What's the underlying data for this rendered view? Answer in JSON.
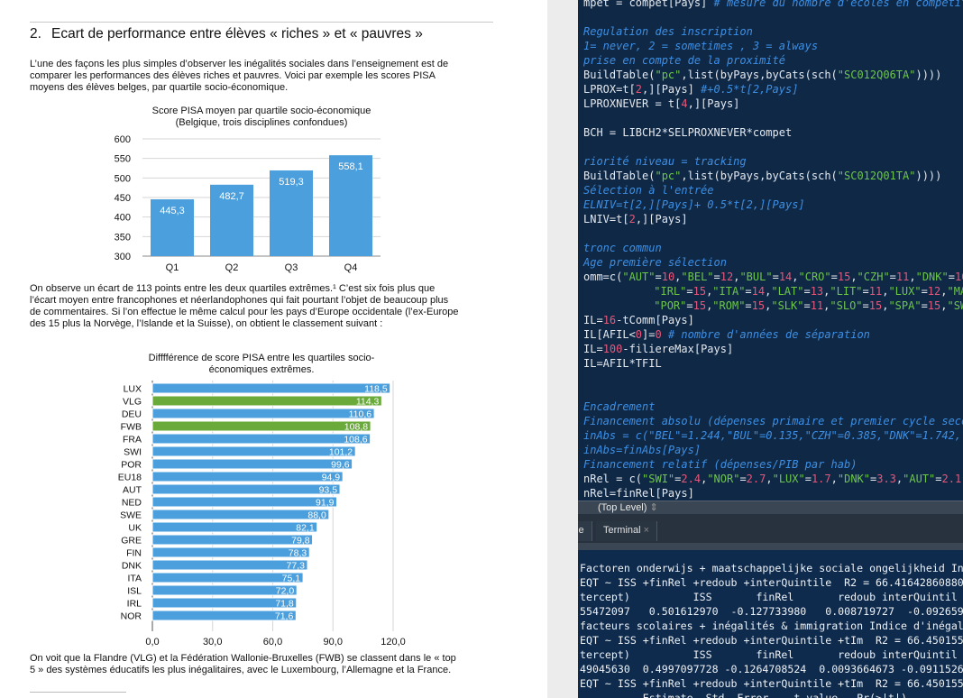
{
  "document": {
    "heading_number": "2.",
    "heading": "Ecart de performance entre élèves « riches » et « pauvres »",
    "para1": [
      "L’une des façons les plus simples d’observer les inégalités sociales dans l’enseignement est de",
      "comparer les performances des élèves riches et pauvres. Voici par exemple les scores PISA",
      "moyens des élèves belges, par quartile socio-économique."
    ],
    "para2": [
      "On observe un écart de 113 points entre les deux quartiles extrêmes.¹ C’est six fois plus que",
      "l’écart moyen entre francophones et néerlandophones qui fait pourtant l’objet de beaucoup plus",
      "de commentaires. Si l’on effectue le même calcul pour les pays d’Europe occidentale (l’ex-Europe",
      "des 15 plus la Norvège, l’Islande et la Suisse), on obtient le classement suivant :"
    ],
    "para3": [
      "On voit que la Flandre (VLG) et la Fédération Wallonie-Bruxelles (FWB) se classent dans le « top",
      "5 » des systèmes éducatifs les plus inégalitaires, avec le Luxembourg, l’Allemagne et la France."
    ]
  },
  "chart_data": [
    {
      "type": "bar",
      "title": "Score PISA moyen par quartile socio-économique",
      "subtitle": "(Belgique, trois disciplines confondues)",
      "categories": [
        "Q1",
        "Q2",
        "Q3",
        "Q4"
      ],
      "values": [
        445.3,
        482.7,
        519.3,
        558.1
      ],
      "value_labels": [
        "445,3",
        "482,7",
        "519,3",
        "558,1"
      ],
      "ylim": [
        300,
        600
      ],
      "yticks": [
        "300",
        "350",
        "400",
        "450",
        "500",
        "550",
        "600"
      ],
      "grid": true,
      "color": "#4a9fdc"
    },
    {
      "type": "bar",
      "orientation": "horizontal",
      "title": "Difffférence de score PISA entre les quartiles socio-",
      "subtitle": "économiques extrêmes.",
      "categories": [
        "LUX",
        "VLG",
        "DEU",
        "FWB",
        "FRA",
        "SWI",
        "POR",
        "EU18",
        "AUT",
        "NED",
        "SWE",
        "UK",
        "GRE",
        "FIN",
        "DNK",
        "ITA",
        "ISL",
        "IRL",
        "NOR"
      ],
      "values": [
        118.5,
        114.3,
        110.6,
        108.8,
        108.6,
        101.2,
        99.6,
        94.9,
        93.5,
        91.9,
        88.0,
        82.1,
        79.8,
        78.3,
        77.3,
        75.1,
        72.0,
        71.8,
        71.6
      ],
      "value_labels": [
        "118,5",
        "114,3",
        "110,6",
        "108,8",
        "108,6",
        "101,2",
        "99,6",
        "94,9",
        "93,5",
        "91,9",
        "88,0",
        "82,1",
        "79,8",
        "78,3",
        "77,3",
        "75,1",
        "72,0",
        "71,8",
        "71,6"
      ],
      "highlighted": [
        "VLG",
        "FWB"
      ],
      "xlim": [
        0,
        120
      ],
      "xticks": [
        "0,0",
        "30,0",
        "60,0",
        "90,0",
        "120,0"
      ],
      "grid": true,
      "color": "#4a9fdc",
      "highlight_color": "#6aaa3a"
    }
  ],
  "editor": {
    "lines": [
      [
        [
          "mpet = compet[Pays] ",
          ""
        ],
        [
          "# mesure du nombre d'écoles en compétitio",
          "c"
        ]
      ],
      [],
      [
        [
          "Regulation des inscription",
          "c"
        ]
      ],
      [
        [
          "1= never, 2 = sometimes , 3 = always",
          "c"
        ]
      ],
      [
        [
          "prise en compte de la proximité",
          "c"
        ]
      ],
      [
        [
          "BuildTable(",
          ""
        ],
        [
          "\"pc\"",
          "s"
        ],
        [
          ",list(byPays,byCats(sch(",
          ""
        ],
        [
          "\"SC012Q06TA\"",
          "s"
        ],
        [
          "))))",
          ""
        ]
      ],
      [
        [
          "LPROX=t[",
          ""
        ],
        [
          "2",
          "n"
        ],
        [
          ",][Pays] ",
          ""
        ],
        [
          "#+0.5*t[2,Pays]",
          "c"
        ]
      ],
      [
        [
          "LPROXNEVER = t[",
          ""
        ],
        [
          "4",
          "n"
        ],
        [
          ",][Pays]",
          ""
        ]
      ],
      [],
      [
        [
          "BCH = LIBCH2*SELPROXNEVER*compet",
          ""
        ]
      ],
      [],
      [
        [
          "riorité niveau = tracking",
          "c"
        ]
      ],
      [
        [
          "BuildTable(",
          ""
        ],
        [
          "\"pc\"",
          "s"
        ],
        [
          ",list(byPays,byCats(sch(",
          ""
        ],
        [
          "\"SC012Q01TA\"",
          "s"
        ],
        [
          "))))",
          ""
        ]
      ],
      [
        [
          "Sélection à l'entrée",
          "c"
        ]
      ],
      [
        [
          "ELNIV=t[2,][Pays]+ 0.5*t[2,][Pays]",
          "c"
        ]
      ],
      [
        [
          "LNIV=t[",
          ""
        ],
        [
          "2",
          "n"
        ],
        [
          ",][Pays]",
          ""
        ]
      ],
      [],
      [
        [
          "tronc commun",
          "c"
        ]
      ],
      [
        [
          "Age première sélection",
          "c"
        ]
      ],
      [
        [
          "omm=c(",
          ""
        ],
        [
          "\"AUT\"",
          "s"
        ],
        [
          "=",
          ""
        ],
        [
          "10",
          "n"
        ],
        [
          ",",
          ""
        ],
        [
          "\"BEL\"",
          "s"
        ],
        [
          "=",
          ""
        ],
        [
          "12",
          "n"
        ],
        [
          ",",
          ""
        ],
        [
          "\"BUL\"",
          "s"
        ],
        [
          "=",
          ""
        ],
        [
          "14",
          "n"
        ],
        [
          ",",
          ""
        ],
        [
          "\"CRO\"",
          "s"
        ],
        [
          "=",
          ""
        ],
        [
          "15",
          "n"
        ],
        [
          ",",
          ""
        ],
        [
          "\"CZH\"",
          "s"
        ],
        [
          "=",
          ""
        ],
        [
          "11",
          "n"
        ],
        [
          ",",
          ""
        ],
        [
          "\"DNK\"",
          "s"
        ],
        [
          "=",
          ""
        ],
        [
          "16",
          "n"
        ],
        [
          ",\"",
          ""
        ]
      ],
      [
        [
          "          ",
          ""
        ],
        [
          "\"IRL\"",
          "s"
        ],
        [
          "=",
          ""
        ],
        [
          "15",
          "n"
        ],
        [
          ",",
          ""
        ],
        [
          "\"ITA\"",
          "s"
        ],
        [
          "=",
          ""
        ],
        [
          "14",
          "n"
        ],
        [
          ",",
          ""
        ],
        [
          "\"LAT\"",
          "s"
        ],
        [
          "=",
          ""
        ],
        [
          "13",
          "n"
        ],
        [
          ",",
          ""
        ],
        [
          "\"LIT\"",
          "s"
        ],
        [
          "=",
          ""
        ],
        [
          "11",
          "n"
        ],
        [
          ",",
          ""
        ],
        [
          "\"LUX\"",
          "s"
        ],
        [
          "=",
          ""
        ],
        [
          "12",
          "n"
        ],
        [
          ",",
          ""
        ],
        [
          "\"MAL\"",
          "s"
        ],
        [
          "=",
          ""
        ],
        [
          "16",
          "n"
        ]
      ],
      [
        [
          "          ",
          ""
        ],
        [
          "\"POR\"",
          "s"
        ],
        [
          "=",
          ""
        ],
        [
          "15",
          "n"
        ],
        [
          ",",
          ""
        ],
        [
          "\"ROM\"",
          "s"
        ],
        [
          "=",
          ""
        ],
        [
          "15",
          "n"
        ],
        [
          ",",
          ""
        ],
        [
          "\"SLK\"",
          "s"
        ],
        [
          "=",
          ""
        ],
        [
          "11",
          "n"
        ],
        [
          ",",
          ""
        ],
        [
          "\"SLO\"",
          "s"
        ],
        [
          "=",
          ""
        ],
        [
          "15",
          "n"
        ],
        [
          ",",
          ""
        ],
        [
          "\"SPA\"",
          "s"
        ],
        [
          "=",
          ""
        ],
        [
          "15",
          "n"
        ],
        [
          ",",
          ""
        ],
        [
          "\"SWE\"",
          "s"
        ],
        [
          "=",
          ""
        ],
        [
          "16",
          "n"
        ]
      ],
      [
        [
          "IL=",
          ""
        ],
        [
          "16",
          "n"
        ],
        [
          "-tComm[Pays]",
          ""
        ]
      ],
      [
        [
          "IL[AFIL<",
          ""
        ],
        [
          "0",
          "n"
        ],
        [
          "]=",
          ""
        ],
        [
          "0",
          "n"
        ],
        [
          " # nombre d'années de séparation",
          "c"
        ]
      ],
      [
        [
          "IL=",
          ""
        ],
        [
          "100",
          "n"
        ],
        [
          "-filiereMax[Pays]",
          ""
        ]
      ],
      [
        [
          "IL=AFIL*TFIL",
          ""
        ]
      ],
      [],
      [],
      [
        [
          "Encadrement",
          "c"
        ]
      ],
      [
        [
          "Financement absolu (dépenses primaire et premier cycle second",
          "c"
        ]
      ],
      [
        [
          "inAbs = c(\"BEL\"=1.244,\"BUL\"=0.135,\"CZH\"=0.385,\"DNK\"=1.742,\"DE",
          "c"
        ]
      ],
      [
        [
          "inAbs=finAbs[Pays]",
          "c"
        ]
      ],
      [
        [
          "Financement relatif (dépenses/PIB par hab)",
          "c"
        ]
      ],
      [
        [
          "nRel = c(",
          ""
        ],
        [
          "\"SWI\"",
          "s"
        ],
        [
          "=",
          ""
        ],
        [
          "2.4",
          "n"
        ],
        [
          ",",
          ""
        ],
        [
          "\"NOR\"",
          "s"
        ],
        [
          "=",
          ""
        ],
        [
          "2.7",
          "n"
        ],
        [
          ",",
          ""
        ],
        [
          "\"LUX\"",
          "s"
        ],
        [
          "=",
          ""
        ],
        [
          "1.7",
          "n"
        ],
        [
          ",",
          ""
        ],
        [
          "\"DNK\"",
          "s"
        ],
        [
          "=",
          ""
        ],
        [
          "3.3",
          "n"
        ],
        [
          ",",
          ""
        ],
        [
          "\"AUT\"",
          "s"
        ],
        [
          "=",
          ""
        ],
        [
          "2.1",
          "n"
        ],
        [
          ",\"S",
          ""
        ]
      ],
      [
        [
          "nRel=finRel[Pays]",
          ""
        ]
      ]
    ],
    "scope_label": "(Top Level)"
  },
  "tabs": {
    "console_partial": "le",
    "terminal": "Terminal",
    "close": "×"
  },
  "console": {
    "lines": [
      "Factoren onderwijs + maatschappelijke sociale ongelijkheid Inde",
      "EQT ~ ISS +finRel +redoub +interQuintile  R2 = 66.4164286088066",
      "tercept)          ISS       finRel       redoub interQuintil",
      "55472097   0.501612970  -0.127733980   0.008719727  -0.09265962",
      "facteurs scolaires + inégalités & immigration Indice d'inégalit",
      "EQT ~ ISS +finRel +redoub +interQuintile +tIm  R2 = 66.4501550",
      "tercept)          ISS       finRel       redoub interQuintil",
      "49045630  0.4997097728 -0.1264708524  0.0093664673 -0.091152625",
      "EQT ~ ISS +finRel +redoub +interQuintile +tIm  R2 = 66.4501550",
      "          Estimate  Std. Error    t value   Pr(>|t|)"
    ]
  }
}
